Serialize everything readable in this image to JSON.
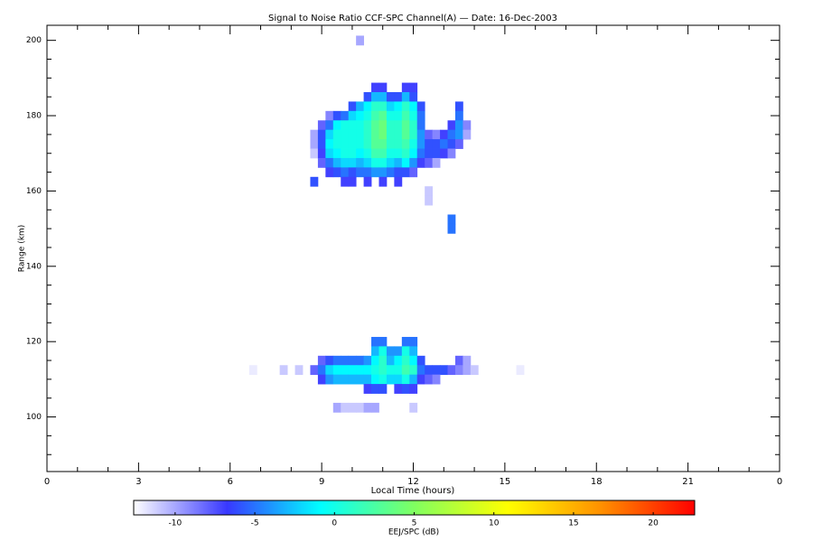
{
  "chart_data": {
    "type": "heatmap",
    "title": "Signal to Noise Ratio CCF-SPC Channel(A) — Date: 16-Dec-2003",
    "xlabel": "Local Time (hours)",
    "ylabel": "Range (km)",
    "xlim": [
      0,
      24
    ],
    "xticks": [
      0,
      3,
      6,
      9,
      12,
      15,
      18,
      21,
      {
        "value": 24,
        "label": "0"
      }
    ],
    "xticks_minor": [
      1,
      2,
      4,
      5,
      7,
      8,
      10,
      11,
      13,
      14,
      16,
      17,
      19,
      20,
      22,
      23
    ],
    "ylim": [
      85.5,
      204
    ],
    "yticks": [
      100,
      120,
      140,
      160,
      180,
      200
    ],
    "yticks_minor": [
      90,
      95,
      105,
      110,
      115,
      125,
      130,
      135,
      145,
      150,
      155,
      165,
      170,
      175,
      185,
      190,
      195
    ],
    "colorbar_label": "EEJ/SPC (dB)",
    "clim": [
      -12.6,
      22.6
    ],
    "cticks": [
      -10,
      -5,
      0,
      5,
      10,
      15,
      20
    ],
    "colorscale": [
      "#ffffff",
      "#3838ff",
      "#00ffff",
      "#80ff60",
      "#ffff00",
      "#ff9000",
      "#ff0000"
    ],
    "rows": [
      {
        "y": 187.5,
        "x": [
          10.75,
          11.0,
          11.75,
          12.0
        ],
        "values": [
          -7,
          -7,
          -7,
          -7
        ]
      },
      {
        "y": 185,
        "x": [
          10.5,
          10.75,
          11.0,
          11.25,
          11.5,
          11.75,
          12.0
        ],
        "values": [
          -6,
          -3,
          -3,
          -6,
          -6,
          -3,
          -6
        ]
      },
      {
        "y": 182.5,
        "x": [
          10.0,
          10.25,
          10.5,
          10.75,
          11.0,
          11.25,
          11.5,
          11.75,
          12.0,
          12.25,
          13.5
        ],
        "values": [
          -6,
          -3,
          -1,
          1,
          1,
          -2,
          -1,
          1,
          -1,
          -6,
          -6
        ]
      },
      {
        "y": 180,
        "x": [
          9.25,
          9.5,
          9.75,
          10.0,
          10.25,
          10.5,
          10.75,
          11.0,
          11.25,
          11.5,
          11.75,
          12.0,
          12.25,
          13.5
        ],
        "values": [
          -9,
          -6,
          -5,
          -2,
          -1,
          0,
          2,
          3,
          0,
          0,
          2,
          0,
          -5,
          -5
        ]
      },
      {
        "y": 177.5,
        "x": [
          9.0,
          9.25,
          9.5,
          9.75,
          10.0,
          10.25,
          10.5,
          10.75,
          11.0,
          11.25,
          11.5,
          11.75,
          12.0,
          12.25,
          13.25,
          13.5,
          13.75
        ],
        "values": [
          -8,
          -5,
          -1,
          0,
          0,
          0,
          1,
          3,
          4,
          1,
          1,
          3,
          1,
          -5,
          -7,
          -4,
          -9
        ]
      },
      {
        "y": 175,
        "x": [
          8.75,
          9.0,
          9.25,
          9.5,
          9.75,
          10.0,
          10.25,
          10.5,
          10.75,
          11.0,
          11.25,
          11.5,
          11.75,
          12.0,
          12.25,
          12.5,
          12.75,
          13.0,
          13.25,
          13.5,
          13.75
        ],
        "values": [
          -10,
          -6,
          -2,
          0,
          0,
          0,
          0,
          1,
          3,
          4,
          1,
          1,
          3,
          1,
          -4,
          -8,
          -9,
          -7,
          -5,
          -4,
          -10
        ]
      },
      {
        "y": 172.5,
        "x": [
          8.75,
          9.0,
          9.25,
          9.5,
          9.75,
          10.0,
          10.25,
          10.5,
          10.75,
          11.0,
          11.25,
          11.5,
          11.75,
          12.0,
          12.25,
          12.5,
          12.75,
          13.0,
          13.25,
          13.5
        ],
        "values": [
          -10,
          -6,
          -1,
          0,
          0,
          0,
          0,
          1,
          3,
          3,
          1,
          1,
          2,
          0,
          -4,
          -6,
          -6,
          -5,
          -6,
          -8
        ]
      },
      {
        "y": 170,
        "x": [
          8.75,
          9.0,
          9.25,
          9.5,
          9.75,
          10.0,
          10.25,
          10.5,
          10.75,
          11.0,
          11.25,
          11.5,
          11.75,
          12.0,
          12.25,
          12.5,
          12.75,
          13.0,
          13.25
        ],
        "values": [
          -11,
          -7,
          -2,
          -1,
          0,
          0,
          -1,
          0,
          2,
          2,
          0,
          0,
          1,
          -1,
          -5,
          -6,
          -6,
          -7,
          -9
        ]
      },
      {
        "y": 167.5,
        "x": [
          9.0,
          9.25,
          9.5,
          9.75,
          10.0,
          10.25,
          10.5,
          10.75,
          11.0,
          11.25,
          11.5,
          11.75,
          12.0,
          12.25,
          12.5,
          12.75
        ],
        "values": [
          -8,
          -5,
          -3,
          -2,
          -2,
          -3,
          -2,
          0,
          0,
          -2,
          -3,
          -1,
          -4,
          -7,
          -8,
          -10
        ]
      },
      {
        "y": 165,
        "x": [
          9.25,
          9.5,
          9.75,
          10.0,
          10.25,
          10.5,
          10.75,
          11.0,
          11.25,
          11.5,
          11.75,
          12.0
        ],
        "values": [
          -7,
          -6,
          -5,
          -6,
          -5,
          -5,
          -4,
          -4,
          -5,
          -6,
          -6,
          -8
        ]
      },
      {
        "y": 162.5,
        "x": [
          8.75,
          9.75,
          10.0,
          10.5,
          11.0,
          11.5
        ],
        "values": [
          -6,
          -7,
          -7,
          -7,
          -7,
          -7
        ]
      },
      {
        "y": 160,
        "x": [
          12.5
        ],
        "values": [
          -11
        ]
      },
      {
        "y": 157.5,
        "x": [
          12.5
        ],
        "values": [
          -11
        ]
      },
      {
        "y": 152.5,
        "x": [
          13.25
        ],
        "values": [
          -5
        ]
      },
      {
        "y": 150,
        "x": [
          13.25
        ],
        "values": [
          -5
        ]
      },
      {
        "y": 200,
        "x": [
          10.25
        ],
        "values": [
          -10
        ]
      },
      {
        "y": 120,
        "x": [
          10.75,
          11.0,
          11.75,
          12.0
        ],
        "values": [
          -5,
          -5,
          -5,
          -5
        ]
      },
      {
        "y": 117.5,
        "x": [
          10.75,
          11.0,
          11.25,
          11.5,
          11.75,
          12.0
        ],
        "values": [
          -3,
          0,
          -4,
          -4,
          0,
          -3
        ]
      },
      {
        "y": 115,
        "x": [
          9.0,
          9.25,
          9.5,
          9.75,
          10.0,
          10.25,
          10.5,
          10.75,
          11.0,
          11.25,
          11.5,
          11.75,
          12.0,
          12.25,
          13.5,
          13.75
        ],
        "values": [
          -8,
          -6,
          -5,
          -5,
          -5,
          -5,
          -4,
          -1,
          1,
          -3,
          -1,
          1,
          -1,
          -6,
          -8,
          -10
        ]
      },
      {
        "y": 112.5,
        "x": [
          6.75,
          7.75,
          8.25,
          8.75,
          9.0,
          9.25,
          9.5,
          9.75,
          10.0,
          10.25,
          10.5,
          10.75,
          11.0,
          11.25,
          11.5,
          11.75,
          12.0,
          12.25,
          12.5,
          12.75,
          13.0,
          13.25,
          13.5,
          13.75,
          14.0,
          15.5
        ],
        "values": [
          -12,
          -11,
          -11,
          -8,
          -5,
          -2,
          -1,
          -1,
          -1,
          -1,
          -1,
          0,
          1,
          0,
          0,
          2,
          1,
          -5,
          -6,
          -6,
          -6,
          -8,
          -9,
          -10,
          -11,
          -12
        ]
      },
      {
        "y": 110,
        "x": [
          9.0,
          9.25,
          9.5,
          9.75,
          10.0,
          10.25,
          10.5,
          10.75,
          11.0,
          11.25,
          11.5,
          11.75,
          12.0,
          12.25,
          12.5,
          12.75
        ],
        "values": [
          -7,
          -4,
          -3,
          -3,
          -3,
          -3,
          -3,
          -1,
          0,
          -2,
          -2,
          0,
          -3,
          -7,
          -8,
          -9
        ]
      },
      {
        "y": 107.5,
        "x": [
          10.5,
          10.75,
          11.0,
          11.5,
          11.75,
          12.0
        ],
        "values": [
          -7,
          -6,
          -6,
          -7,
          -6,
          -7
        ]
      },
      {
        "y": 102.5,
        "x": [
          9.5,
          9.75,
          10.0,
          10.25,
          10.5,
          10.75,
          12.0
        ],
        "values": [
          -10,
          -11,
          -11,
          -11,
          -10,
          -10,
          -11
        ]
      }
    ]
  }
}
